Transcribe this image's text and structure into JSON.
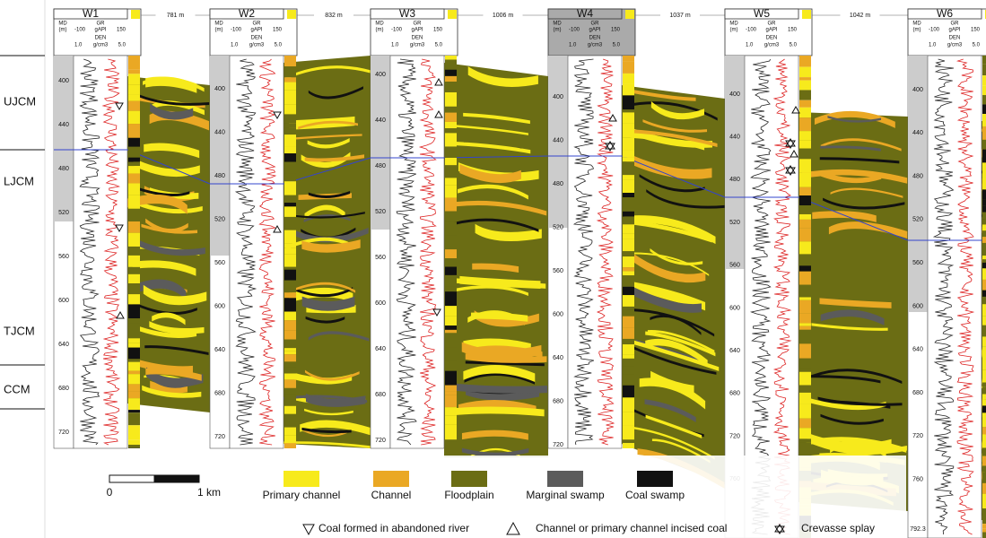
{
  "zones": [
    "UJCM",
    "LJCM",
    "TJCM",
    "CCM"
  ],
  "log_header": {
    "md": "MD",
    "md_unit": "(m)",
    "gr": "GR",
    "gr_min": "-100",
    "gr_unit": "gAPI",
    "gr_max": "150",
    "den": "DEN",
    "den_min": "1.0",
    "den_unit": "g/cm3",
    "den_max": "5.0"
  },
  "wells": [
    {
      "name": "W1",
      "depth_ticks": [
        400,
        440,
        480,
        520,
        560,
        600,
        640,
        680,
        720
      ]
    },
    {
      "name": "W2",
      "depth_ticks": [
        400,
        440,
        480,
        520,
        560,
        600,
        640,
        680,
        720
      ]
    },
    {
      "name": "W3",
      "depth_ticks": [
        400,
        440,
        480,
        520,
        560,
        600,
        640,
        680,
        720
      ]
    },
    {
      "name": "W4",
      "depth_ticks": [
        400,
        440,
        480,
        520,
        560,
        600,
        640,
        680,
        720
      ]
    },
    {
      "name": "W5",
      "depth_ticks": [
        400,
        440,
        480,
        520,
        560,
        600,
        640,
        680,
        720,
        760
      ]
    },
    {
      "name": "W6",
      "depth_ticks": [
        400,
        440,
        480,
        520,
        560,
        600,
        640,
        680,
        720,
        760
      ],
      "bottom_label": "792.3"
    }
  ],
  "spacings": [
    "781 m",
    "832 m",
    "1006 m",
    "1037 m",
    "1042 m"
  ],
  "legend": {
    "scale_start": "0",
    "scale_end": "1 km",
    "facies": [
      {
        "label": "Primary channel",
        "color": "#f7ea1c"
      },
      {
        "label": "Channel",
        "color": "#eaa824"
      },
      {
        "label": "Floodplain",
        "color": "#6b6d14"
      },
      {
        "label": "Marginal swamp",
        "color": "#5b5b5b"
      },
      {
        "label": "Coal swamp",
        "color": "#111111"
      }
    ],
    "symbols": [
      "Coal formed in abandoned river",
      "Channel or primary channel incised coal",
      "Crevasse splay"
    ]
  }
}
